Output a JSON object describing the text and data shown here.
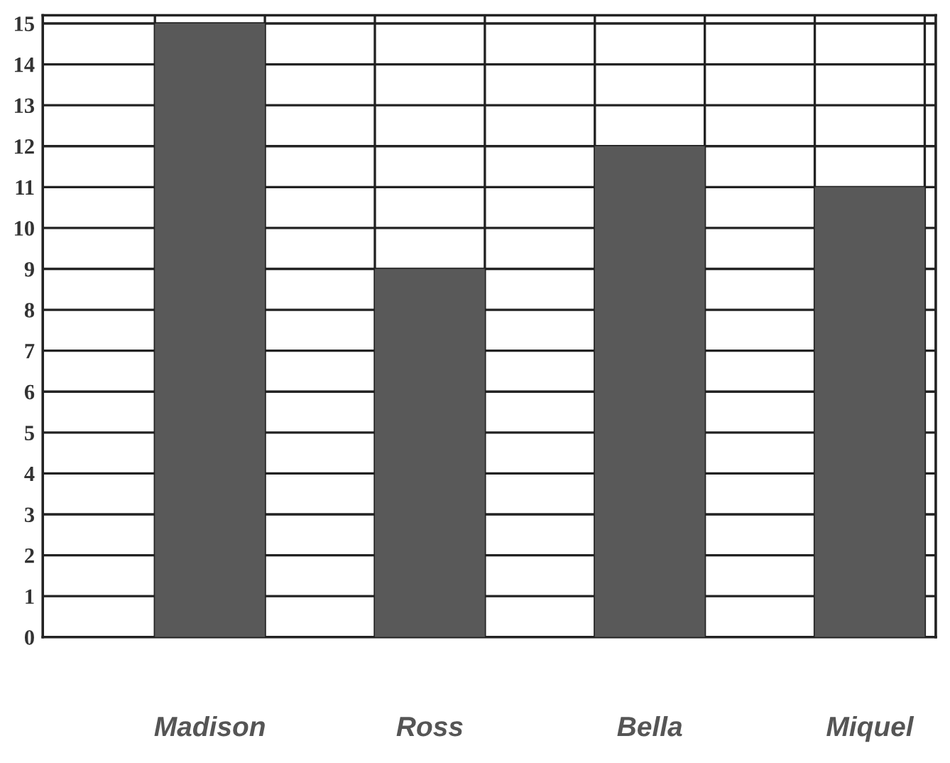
{
  "chart_data": {
    "type": "bar",
    "categories": [
      "Madison",
      "Ross",
      "Bella",
      "Miquel"
    ],
    "values": [
      15,
      9,
      12,
      11
    ],
    "color": "#595959",
    "ylim": [
      0,
      15.2
    ],
    "yticks": [
      0,
      1,
      2,
      3,
      4,
      5,
      6,
      7,
      8,
      9,
      10,
      11,
      12,
      13,
      14,
      15
    ],
    "grid": true
  }
}
